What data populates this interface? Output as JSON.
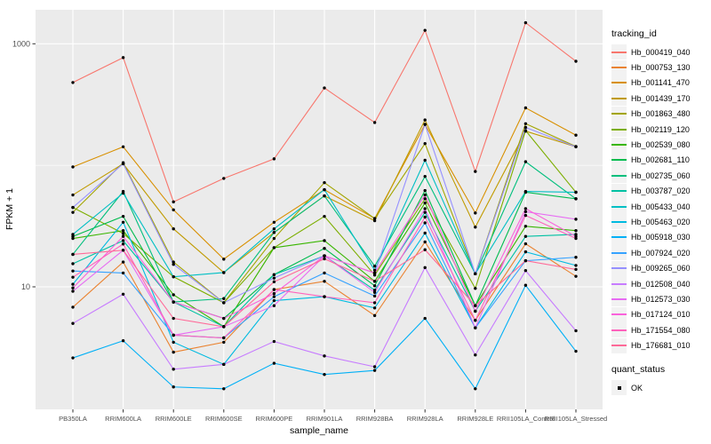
{
  "chart_data": {
    "type": "line",
    "title": "",
    "xlabel": "sample_name",
    "ylabel": "FPKM + 1",
    "y_scale": "log10",
    "ylim": [
      1,
      1900
    ],
    "grid": "on",
    "legend_position": "right",
    "y_ticks": [
      {
        "label": "1000",
        "value": 1000
      },
      {
        "label": "10",
        "value": 10
      }
    ],
    "y_minor_gridlines": [
      100
    ],
    "categories": [
      "PB350LA",
      "RRIM600LA",
      "RRIM600LE",
      "RRIM600SE",
      "RRIM600PE",
      "RRIM901LA",
      "RRIM928BA",
      "RRIM928LA",
      "RRIM928LE",
      "RRII105LA_Control",
      "RRII105LA_Stressed"
    ],
    "series": [
      {
        "name": "Hb_000419_040",
        "color": "#F8766D",
        "quant_status": "OK",
        "values": [
          480,
          770,
          50,
          78,
          113,
          433,
          225,
          1290,
          89,
          1490,
          718
        ]
      },
      {
        "name": "Hb_000753_130",
        "color": "#EA8331",
        "quant_status": "OK",
        "values": [
          6.8,
          16,
          2.9,
          3.5,
          9.5,
          11.1,
          5.8,
          23.4,
          5.3,
          22.6,
          12.2
        ]
      },
      {
        "name": "Hb_001141_470",
        "color": "#D89000",
        "quant_status": "OK",
        "values": [
          97,
          142,
          43,
          16.9,
          34,
          63,
          36.5,
          217,
          40.5,
          297,
          177
        ]
      },
      {
        "name": "Hb_001439_170",
        "color": "#C09B00",
        "quant_status": "OK",
        "values": [
          57,
          103,
          30,
          13.1,
          28,
          56,
          35,
          236,
          31,
          191,
          142
        ]
      },
      {
        "name": "Hb_001863_480",
        "color": "#A3A500",
        "quant_status": "OK",
        "values": [
          41,
          105,
          16,
          7.4,
          25,
          72,
          36.5,
          151,
          12.8,
          220,
          143
        ]
      },
      {
        "name": "Hb_002119_120",
        "color": "#7CAE00",
        "quant_status": "OK",
        "values": [
          45,
          27.5,
          12.1,
          7.4,
          21,
          38,
          12.5,
          53,
          9.7,
          193,
          60
        ]
      },
      {
        "name": "Hb_002539_080",
        "color": "#39B600",
        "quant_status": "OK",
        "values": [
          25,
          29,
          8.6,
          4.7,
          21,
          24,
          11.1,
          49,
          7.0,
          31.5,
          29
        ]
      },
      {
        "name": "Hb_002681_110",
        "color": "#00BB4E",
        "quant_status": "OK",
        "values": [
          26,
          38,
          7.5,
          5.5,
          12.6,
          20.7,
          10.2,
          62,
          7.0,
          60,
          53
        ]
      },
      {
        "name": "Hb_002735_060",
        "color": "#00BF7D",
        "quant_status": "OK",
        "values": [
          18.5,
          61,
          7.5,
          8.0,
          28,
          56,
          14.8,
          81,
          12.8,
          107,
          53
        ]
      },
      {
        "name": "Hb_003787_020",
        "color": "#00C1A3",
        "quant_status": "OK",
        "values": [
          15.5,
          24,
          7.5,
          4.7,
          12.6,
          18,
          9.4,
          41,
          6.3,
          26,
          27
        ]
      },
      {
        "name": "Hb_005433_040",
        "color": "#00BFC4",
        "quant_status": "OK",
        "values": [
          27,
          59,
          12.1,
          13.1,
          30,
          63,
          13.7,
          110,
          12.8,
          61,
          60
        ]
      },
      {
        "name": "Hb_005463_020",
        "color": "#00BAE0",
        "quant_status": "OK",
        "values": [
          10.5,
          34,
          3.5,
          2.3,
          7.7,
          8.3,
          6.7,
          27.7,
          4.6,
          19.4,
          15
        ]
      },
      {
        "name": "Hb_005918_030",
        "color": "#00B0F6",
        "quant_status": "OK",
        "values": [
          2.6,
          3.6,
          1.5,
          1.45,
          2.35,
          1.9,
          2.05,
          5.5,
          1.45,
          10.3,
          2.95
        ]
      },
      {
        "name": "Hb_007924_020",
        "color": "#35A2FF",
        "quant_status": "OK",
        "values": [
          13.5,
          13,
          4.0,
          3.8,
          8.3,
          13,
          8.4,
          33.6,
          4.6,
          16.4,
          17.5
        ]
      },
      {
        "name": "Hb_009265_060",
        "color": "#9590FF",
        "quant_status": "OK",
        "values": [
          45,
          103,
          15.3,
          7.4,
          11.8,
          18,
          13,
          217,
          12.8,
          205,
          142
        ]
      },
      {
        "name": "Hb_012508_040",
        "color": "#C77CFF",
        "quant_status": "OK",
        "values": [
          5.0,
          8.7,
          2.1,
          2.3,
          3.55,
          2.7,
          2.2,
          14.4,
          2.75,
          13.6,
          4.35
        ]
      },
      {
        "name": "Hb_012573_030",
        "color": "#E76BF3",
        "quant_status": "OK",
        "values": [
          9.2,
          20,
          4.0,
          4.7,
          7.0,
          18,
          9.0,
          44,
          4.6,
          41.5,
          36
        ]
      },
      {
        "name": "Hb_017124_010",
        "color": "#FA62DB",
        "quant_status": "OK",
        "values": [
          9.8,
          26,
          7.5,
          5.5,
          8.8,
          18,
          13,
          57,
          6.3,
          44,
          26
        ]
      },
      {
        "name": "Hb_171554_080",
        "color": "#FF62BC",
        "quant_status": "OK",
        "values": [
          12,
          22.5,
          4.0,
          3.8,
          9.5,
          8.3,
          7.4,
          37.5,
          5.3,
          38.7,
          25
        ]
      },
      {
        "name": "Hb_176681_010",
        "color": "#FF6A98",
        "quant_status": "OK",
        "values": [
          18.5,
          20,
          5.5,
          4.7,
          11,
          17,
          11.1,
          20.2,
          7.0,
          16.4,
          13.9
        ]
      }
    ]
  },
  "legend": {
    "tracking_title": "tracking_id",
    "quant_title": "quant_status",
    "quant_items": [
      {
        "label": "OK",
        "marker": "black-square"
      }
    ]
  },
  "style_colors": {
    "panel_bg": "#EBEBEB",
    "gridline": "#FFFFFF",
    "legend_key_bg": "#F2F2F2",
    "axis_text": "#4D4D4D",
    "tick_mark": "#333333",
    "point": "#000000"
  }
}
